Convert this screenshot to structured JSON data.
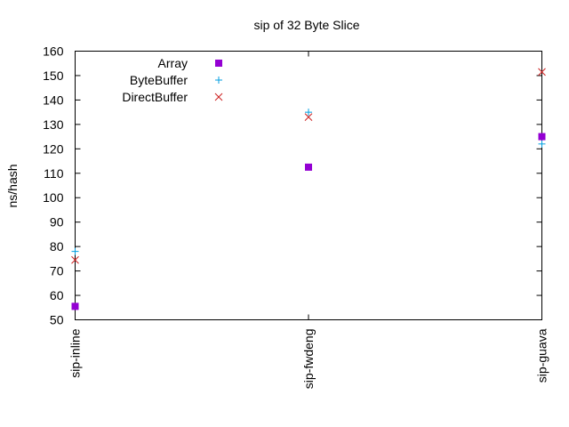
{
  "chart_data": {
    "type": "scatter",
    "title": "sip of 32 Byte Slice",
    "xlabel": "",
    "ylabel": "ns/hash",
    "categories": [
      "sip-inline",
      "sip-fwdeng",
      "sip-guava"
    ],
    "ylim": [
      50,
      160
    ],
    "yticks": [
      50,
      60,
      70,
      80,
      90,
      100,
      110,
      120,
      130,
      140,
      150,
      160
    ],
    "grid": false,
    "legend_position": "top-left",
    "series": [
      {
        "name": "Array",
        "marker": "square",
        "color": "#9400d3",
        "values": [
          55.5,
          112.5,
          125
        ]
      },
      {
        "name": "ByteBuffer",
        "marker": "plus",
        "color": "#009ee0",
        "values": [
          78,
          135,
          122
        ]
      },
      {
        "name": "DirectBuffer",
        "marker": "cross",
        "color": "#cc1f1f",
        "values": [
          74.5,
          133,
          151.5
        ]
      }
    ]
  }
}
